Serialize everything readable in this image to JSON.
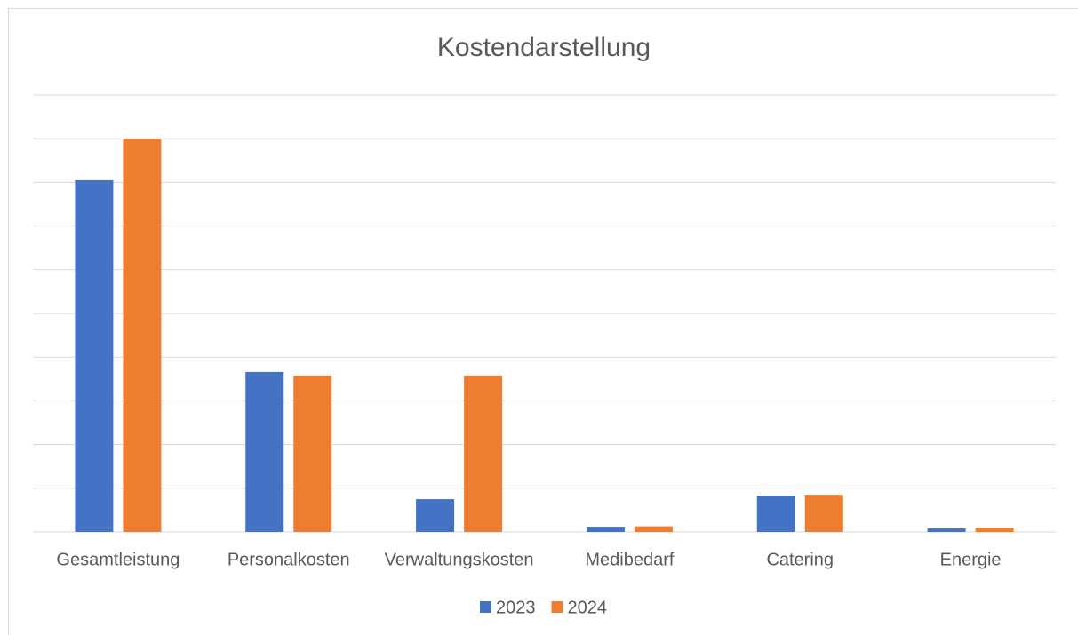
{
  "chart_data": {
    "type": "bar",
    "title": "Kostendarstellung",
    "categories": [
      "Gesamtleistung",
      "Personalkosten",
      "Verwaltungskosten",
      "Medibedarf",
      "Catering",
      "Energie"
    ],
    "series": [
      {
        "name": "2023",
        "color": "#4472c4",
        "values": [
          8.05,
          3.66,
          0.75,
          0.12,
          0.83,
          0.08
        ]
      },
      {
        "name": "2024",
        "color": "#ed7d31",
        "values": [
          9.0,
          3.58,
          3.58,
          0.13,
          0.85,
          0.1
        ]
      }
    ],
    "ylim": [
      0,
      10
    ],
    "yticks": [
      0,
      1,
      2,
      3,
      4,
      5,
      6,
      7,
      8,
      9,
      10
    ],
    "grid": true,
    "legend": "bottom"
  }
}
